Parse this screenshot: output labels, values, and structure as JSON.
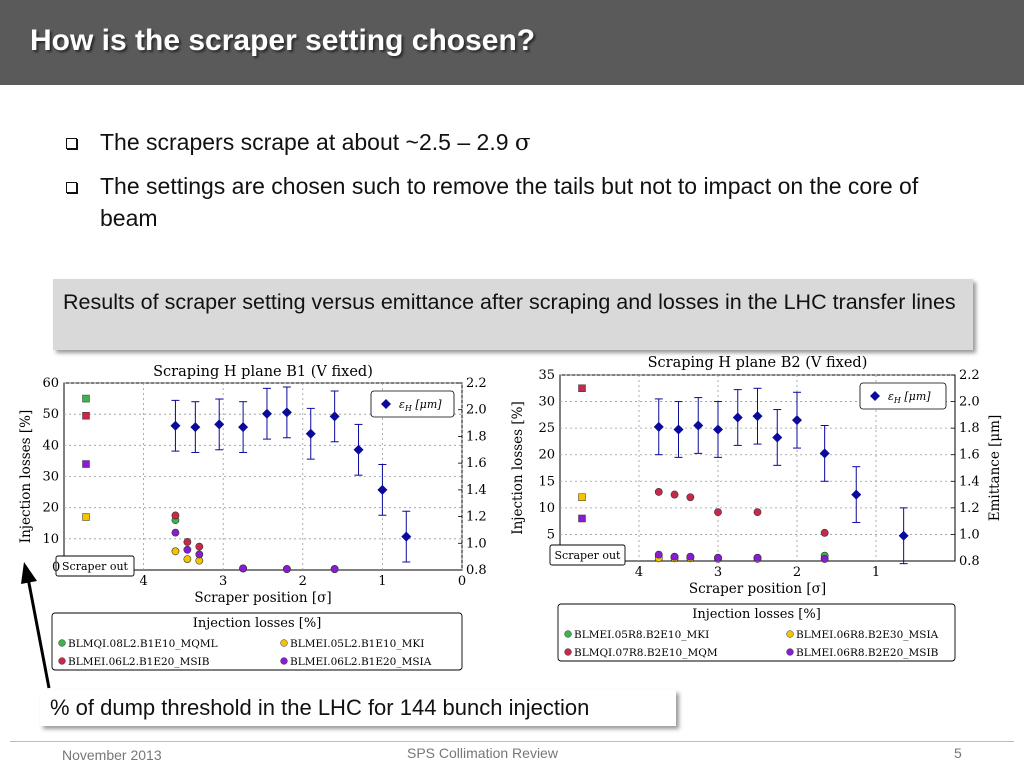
{
  "slide": {
    "title": "How is the scraper setting chosen?",
    "bullets": [
      {
        "text": "The scrapers scrape at about ~2.5 – 2.9 ",
        "symbol": "σ"
      },
      {
        "text": "The settings are chosen such to remove the tails but not to impact on the core of beam",
        "symbol": ""
      }
    ],
    "callout": "Results of scraper setting versus emittance after scraping and losses in the LHC transfer lines",
    "caption": "% of dump threshold in the LHC for 144 bunch injection",
    "footer": {
      "date": "November 2013",
      "center": "SPS Collimation Review",
      "page": "5"
    }
  },
  "colors": {
    "title_bar": "#5a5a5a",
    "emittance": "#0a0a9c",
    "green": "#3cb44b",
    "yellow": "#f5c400",
    "red": "#c8284a",
    "purple": "#8a1ad6"
  },
  "chart_data": [
    {
      "type": "scatter",
      "title": "Scraping H plane B1 (V fixed)",
      "xlabel": "Scraper position [σ]",
      "ylabel": "Injection losses [%]",
      "y2label": "",
      "xlim": [
        5,
        0
      ],
      "ylim": [
        0,
        60
      ],
      "y2lim": [
        0.8,
        2.2
      ],
      "xticks": [
        "4",
        "3",
        "2",
        "1",
        "0"
      ],
      "yticks": [
        "10",
        "20",
        "30",
        "40",
        "50",
        "60"
      ],
      "y2ticks": [
        "0.8",
        "1.0",
        "1.2",
        "1.4",
        "1.6",
        "1.8",
        "2.0",
        "2.2"
      ],
      "scraper_out_label": "Scraper out",
      "scraper_out_tick": "0",
      "legend_top": {
        "label": "ε_H [μm]",
        "position": "top-right"
      },
      "legend_bottom_title": "Injection losses [%]",
      "emittance": {
        "name": "ε_H [μm]",
        "x": [
          3.6,
          3.35,
          3.05,
          2.75,
          2.45,
          2.2,
          1.9,
          1.6,
          1.3,
          1.0,
          0.7
        ],
        "y": [
          1.88,
          1.87,
          1.89,
          1.87,
          1.97,
          1.98,
          1.82,
          1.95,
          1.7,
          1.4,
          1.05
        ],
        "err": [
          0.19,
          0.19,
          0.19,
          0.19,
          0.19,
          0.19,
          0.19,
          0.19,
          0.19,
          0.19,
          0.19
        ]
      },
      "out_points": [
        {
          "series": "BLMQI.08L2.B1E10_MQML",
          "y": 55
        },
        {
          "series": "BLMEI.06L2.B1E20_MSIB",
          "y": 49.5
        },
        {
          "series": "BLMEI.06L2.B1E20_MSIA",
          "y": 34
        },
        {
          "series": "BLMEI.05L2.B1E10_MKI",
          "y": 17
        }
      ],
      "series": [
        {
          "name": "BLMQI.08L2.B1E10_MQML",
          "color": "#3cb44b",
          "x": [
            3.6
          ],
          "y": [
            16
          ]
        },
        {
          "name": "BLMEI.05L2.B1E10_MKI",
          "color": "#f5c400",
          "x": [
            3.6,
            3.45,
            3.3
          ],
          "y": [
            6,
            3.5,
            3
          ]
        },
        {
          "name": "BLMEI.06L2.B1E20_MSIB",
          "color": "#c8284a",
          "x": [
            3.6,
            3.45,
            3.3,
            2.75,
            2.2,
            1.6
          ],
          "y": [
            17.5,
            9,
            7.5,
            0.5,
            0.3,
            0.3
          ]
        },
        {
          "name": "BLMEI.06L2.B1E20_MSIA",
          "color": "#8a1ad6",
          "x": [
            3.6,
            3.45,
            3.3,
            2.75,
            2.2,
            1.6
          ],
          "y": [
            12,
            6.5,
            5,
            0.5,
            0.3,
            0.3
          ]
        }
      ]
    },
    {
      "type": "scatter",
      "title": "Scraping H plane B2 (V fixed)",
      "xlabel": "Scraper position [σ]",
      "ylabel": "Injection losses [%]",
      "y2label": "Emittance [μm]",
      "xlim": [
        5,
        0
      ],
      "ylim": [
        0,
        35
      ],
      "y2lim": [
        0.8,
        2.2
      ],
      "xticks": [
        "4",
        "3",
        "2",
        "1"
      ],
      "yticks": [
        "5",
        "10",
        "15",
        "20",
        "25",
        "30",
        "35"
      ],
      "y2ticks": [
        "0.8",
        "1.0",
        "1.2",
        "1.4",
        "1.6",
        "1.8",
        "2.0",
        "2.2"
      ],
      "scraper_out_label": "Scraper out",
      "scraper_out_tick": "",
      "legend_top": {
        "label": "ε_H [μm]",
        "position": "top-right"
      },
      "legend_bottom_title": "Injection losses [%]",
      "emittance": {
        "name": "ε_H [μm]",
        "x": [
          3.75,
          3.5,
          3.25,
          3.0,
          2.75,
          2.5,
          2.25,
          2.0,
          1.65,
          1.25,
          0.65
        ],
        "y": [
          1.81,
          1.79,
          1.82,
          1.79,
          1.88,
          1.89,
          1.73,
          1.86,
          1.61,
          1.3,
          0.99
        ],
        "err": [
          0.21,
          0.21,
          0.21,
          0.21,
          0.21,
          0.21,
          0.21,
          0.21,
          0.21,
          0.21,
          0.21
        ]
      },
      "out_points": [
        {
          "series": "BLMQI.07R8.B2E10_MQM",
          "y": 32.5
        },
        {
          "series": "BLMEI.06R8.B2E30_MSIA",
          "y": 12
        },
        {
          "series": "BLMEI.06R8.B2E20_MSIB",
          "y": 8
        }
      ],
      "series": [
        {
          "name": "BLMEI.05R8.B2E10_MKI",
          "color": "#3cb44b",
          "x": [
            3.75,
            3.55,
            3.35,
            3.0,
            2.5,
            1.65
          ],
          "y": [
            1,
            0.8,
            0.8,
            0.6,
            0.6,
            1
          ]
        },
        {
          "name": "BLMEI.06R8.B2E30_MSIA",
          "color": "#f5c400",
          "x": [
            3.75,
            3.55,
            3.35,
            3.0,
            2.5,
            1.65
          ],
          "y": [
            0.5,
            0.5,
            0.5,
            0.4,
            0.4,
            0.4
          ]
        },
        {
          "name": "BLMQI.07R8.B2E10_MQM",
          "color": "#c8284a",
          "x": [
            3.75,
            3.55,
            3.35,
            3.0,
            2.5,
            1.65
          ],
          "y": [
            13,
            12.5,
            12,
            9.2,
            9.2,
            5.3
          ]
        },
        {
          "name": "BLMEI.06R8.B2E20_MSIB",
          "color": "#8a1ad6",
          "x": [
            3.75,
            3.55,
            3.35,
            3.0,
            2.5,
            1.65
          ],
          "y": [
            1.2,
            0.8,
            0.8,
            0.6,
            0.6,
            0.4
          ]
        }
      ]
    }
  ]
}
